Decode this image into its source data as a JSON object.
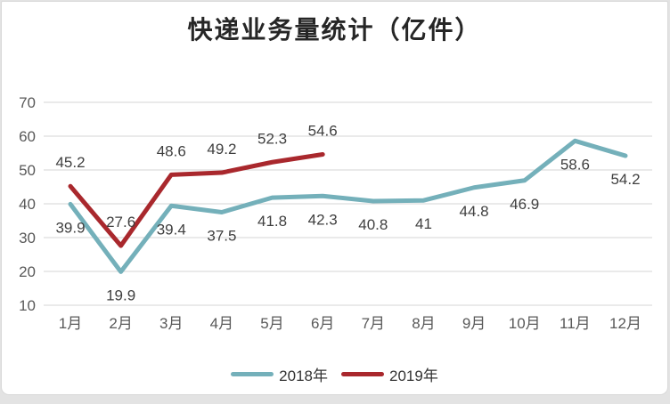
{
  "title": "快递业务量统计（亿件）",
  "chart_data": {
    "type": "line",
    "title": "快递业务量统计（亿件）",
    "categories": [
      "1月",
      "2月",
      "3月",
      "4月",
      "5月",
      "6月",
      "7月",
      "8月",
      "9月",
      "10月",
      "11月",
      "12月"
    ],
    "series": [
      {
        "name": "2018年",
        "color": "#74b0ba",
        "values": [
          39.9,
          19.9,
          39.4,
          37.5,
          41.8,
          42.3,
          40.8,
          41,
          44.8,
          46.9,
          58.6,
          54.2
        ],
        "label_position": "below"
      },
      {
        "name": "2019年",
        "color": "#a9282d",
        "values": [
          45.2,
          27.6,
          48.6,
          49.2,
          52.3,
          54.6
        ],
        "label_position": "above"
      }
    ],
    "ylim": [
      10,
      70
    ],
    "ytick_step": 10,
    "grid": true,
    "legend_position": "bottom",
    "grid_color": "#d6d6d6",
    "axis_color": "#595959",
    "label_color": "#3f3f3f"
  }
}
